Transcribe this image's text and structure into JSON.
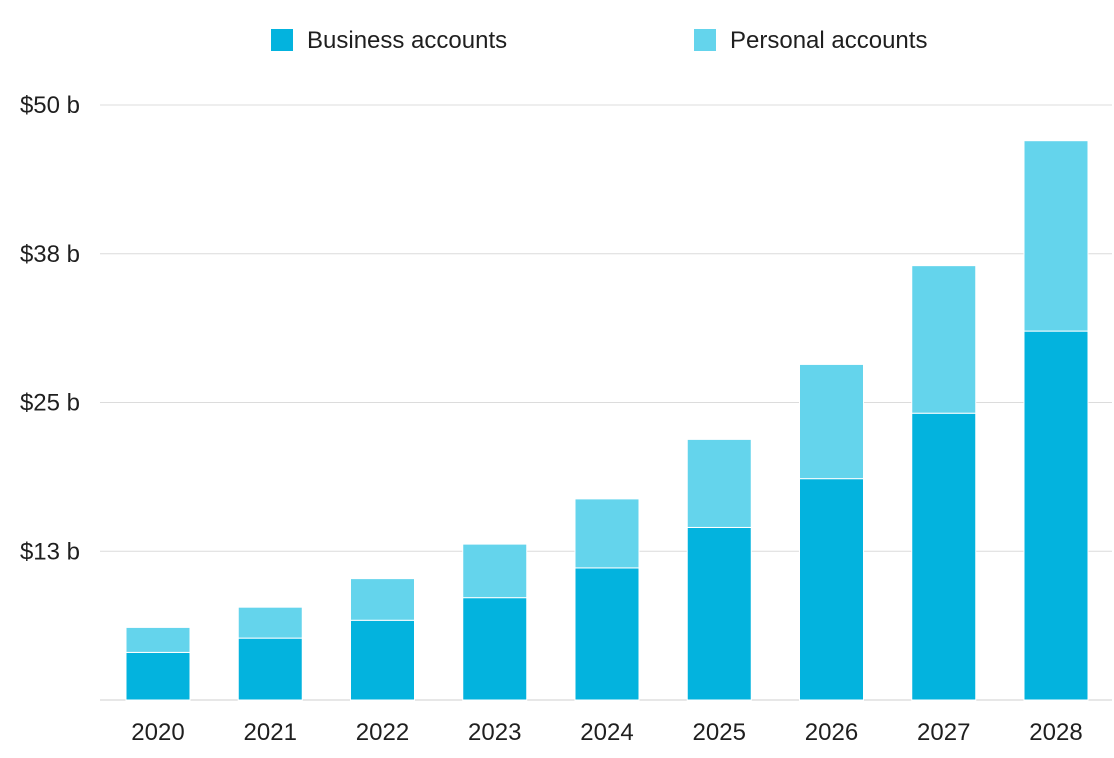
{
  "chart_data": {
    "type": "bar",
    "stacked": true,
    "categories": [
      "2020",
      "2021",
      "2022",
      "2023",
      "2024",
      "2025",
      "2026",
      "2027",
      "2028"
    ],
    "series": [
      {
        "name": "Business accounts",
        "color": "#03b3de",
        "values": [
          4.0,
          5.2,
          6.7,
          8.6,
          11.1,
          14.5,
          18.6,
          24.1,
          31.0
        ]
      },
      {
        "name": "Personal accounts",
        "color": "#64d4ec",
        "values": [
          2.1,
          2.6,
          3.5,
          4.5,
          5.8,
          7.4,
          9.6,
          12.4,
          16.0
        ]
      }
    ],
    "ylim": [
      0,
      50
    ],
    "yticks": [
      {
        "value": 12.5,
        "label": "$13 b"
      },
      {
        "value": 25,
        "label": "$25 b"
      },
      {
        "value": 37.5,
        "label": "$38 b"
      },
      {
        "value": 50,
        "label": "$50 b"
      }
    ],
    "grid": true,
    "legend_position": "top-center",
    "title": "",
    "xlabel": "",
    "ylabel": ""
  }
}
